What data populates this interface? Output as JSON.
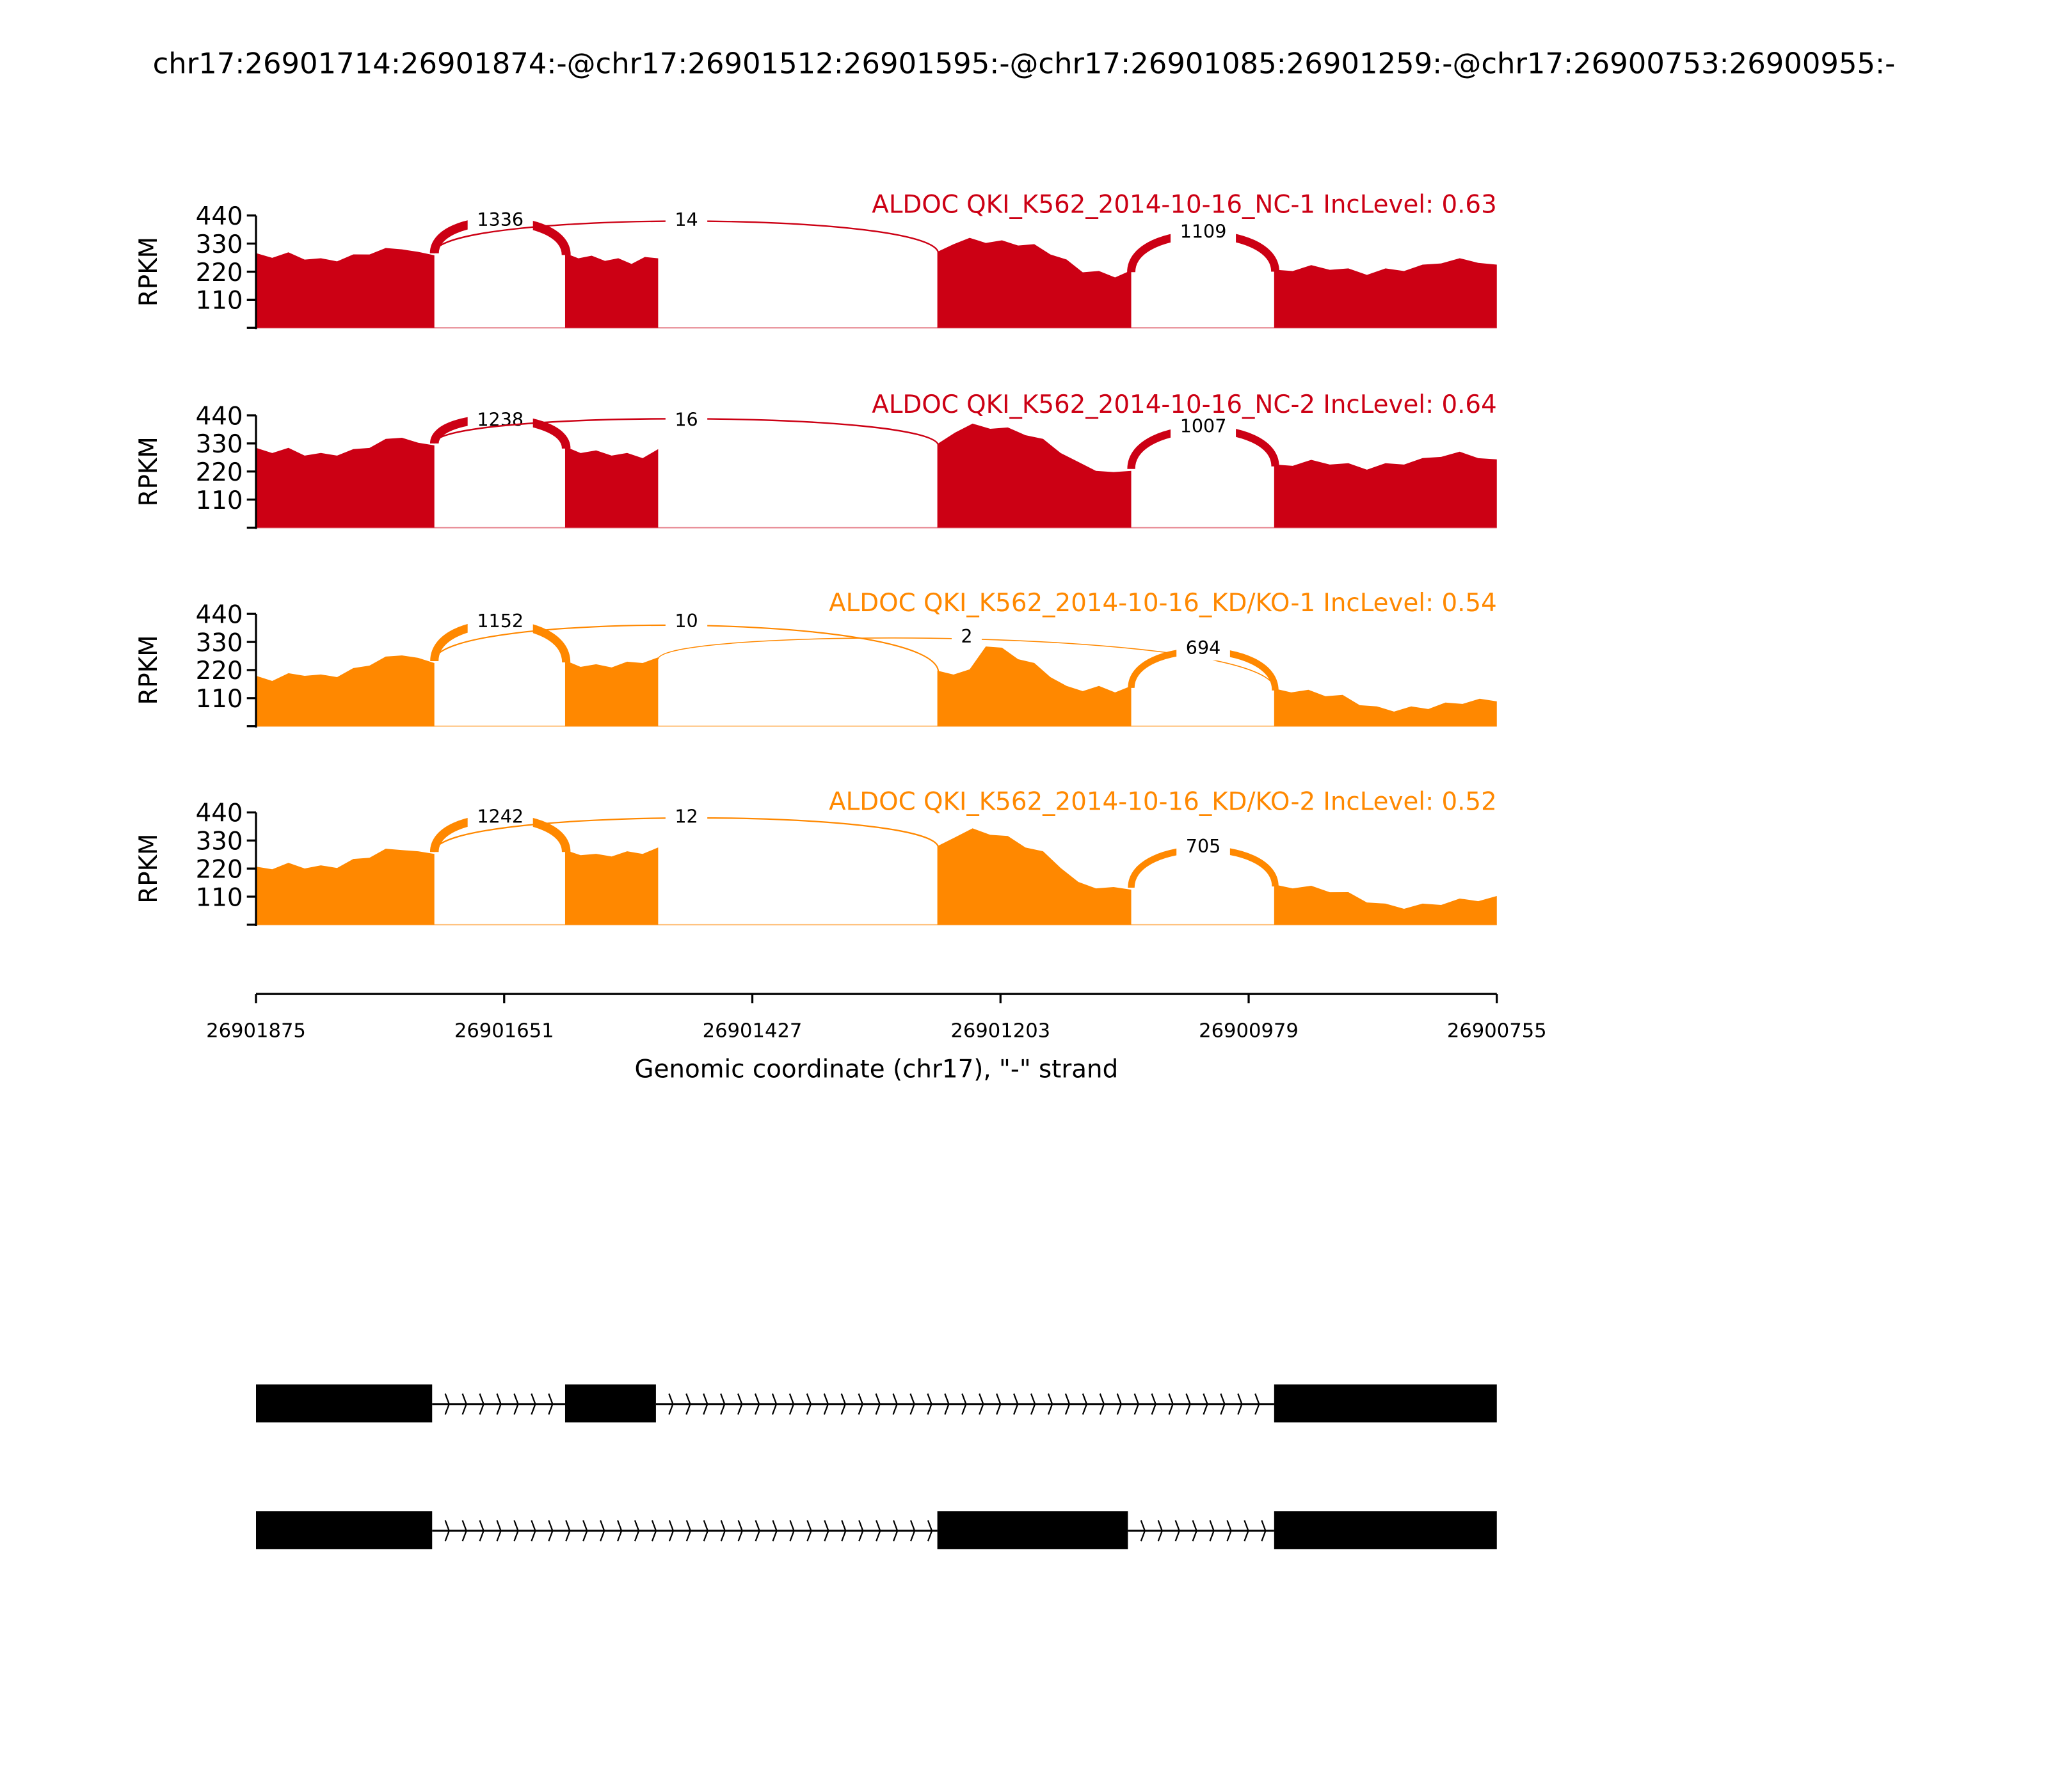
{
  "title": "chr17:26901714:26901874:-@chr17:26901512:26901595:-@chr17:26901085:26901259:-@chr17:26900753:26900955:-",
  "chart_data": {
    "type": "area",
    "title": "chr17:26901714:26901874:-@chr17:26901512:26901595:-@chr17:26901085:26901259:-@chr17:26900753:26900955:-",
    "xlabel": "Genomic coordinate (chr17), \"-\" strand",
    "ylabel": "RPKM",
    "xlim": [
      26901875,
      26900755
    ],
    "ylim": [
      0,
      440
    ],
    "yticks": [
      "440",
      "330",
      "220",
      "110"
    ],
    "xticks": [
      {
        "value": 26901875,
        "label": "26901875"
      },
      {
        "value": 26901651,
        "label": "26901651"
      },
      {
        "value": 26901427,
        "label": "26901427"
      },
      {
        "value": 26901203,
        "label": "26901203"
      },
      {
        "value": 26900979,
        "label": "26900979"
      },
      {
        "value": 26900755,
        "label": "26900755"
      }
    ],
    "exons": [
      [
        26901874,
        26901714
      ],
      [
        26901595,
        26901512
      ],
      [
        26901259,
        26901085
      ],
      [
        26900955,
        26900755
      ]
    ],
    "samples": [
      {
        "label": "ALDOC QKI_K562_2014-10-16_NC-1 IncLevel: 0.63",
        "color": "#cc0014",
        "coverage": [
          [
            285,
            282,
            288,
            275,
            265,
            268,
            280,
            295,
            305,
            315,
            290,
            292
          ],
          [
            285,
            280,
            275,
            270,
            265,
            258,
            270,
            280
          ],
          [
            290,
            335,
            345,
            340,
            335,
            330,
            320,
            295,
            260,
            225,
            215,
            205,
            218
          ],
          [
            220,
            230,
            238,
            235,
            225,
            215,
            225,
            230,
            240,
            260,
            265,
            262,
            240
          ]
        ],
        "junctions": [
          {
            "from": 26901714,
            "to": 26901595,
            "count": "1336"
          },
          {
            "from": 26901714,
            "to": 26901259,
            "count": "14"
          },
          {
            "from": 26901085,
            "to": 26900955,
            "count": "1109"
          }
        ]
      },
      {
        "label": "ALDOC QKI_K562_2014-10-16_NC-2 IncLevel: 0.64",
        "color": "#cc0014",
        "coverage": [
          [
            305,
            300,
            305,
            290,
            285,
            290,
            300,
            320,
            340,
            360,
            325,
            330
          ],
          [
            310,
            300,
            295,
            290,
            285,
            280,
            300
          ],
          [
            320,
            380,
            400,
            395,
            385,
            370,
            340,
            300,
            250,
            230,
            210,
            230
          ],
          [
            240,
            250,
            258,
            255,
            245,
            235,
            245,
            255,
            265,
            285,
            290,
            280,
            260
          ]
        ],
        "junctions": [
          {
            "from": 26901714,
            "to": 26901595,
            "count": "1238"
          },
          {
            "from": 26901714,
            "to": 26901259,
            "count": "16"
          },
          {
            "from": 26901085,
            "to": 26900955,
            "count": "1007"
          }
        ]
      },
      {
        "label": "ALDOC QKI_K562_2014-10-16_KD/KO-1 IncLevel: 0.54",
        "color": "#ff8800",
        "coverage": [
          [
            190,
            185,
            200,
            205,
            195,
            200,
            220,
            245,
            265,
            285,
            260,
            255
          ],
          [
            250,
            240,
            235,
            238,
            245,
            255,
            262
          ],
          [
            210,
            210,
            215,
            320,
            300,
            270,
            240,
            200,
            150,
            145,
            150,
            140,
            150
          ],
          [
            140,
            140,
            135,
            125,
            115,
            90,
            70,
            65,
            70,
            75,
            85,
            95,
            100,
            105
          ]
        ],
        "junctions": [
          {
            "from": 26901714,
            "to": 26901595,
            "count": "1152"
          },
          {
            "from": 26901714,
            "to": 26901259,
            "count": "10"
          },
          {
            "from": 26901512,
            "to": 26900955,
            "count": "2"
          },
          {
            "from": 26901085,
            "to": 26900955,
            "count": "694"
          }
        ]
      },
      {
        "label": "ALDOC QKI_K562_2014-10-16_KD/KO-2 IncLevel: 0.52",
        "color": "#ff8800",
        "coverage": [
          [
            220,
            225,
            235,
            228,
            225,
            230,
            250,
            270,
            290,
            300,
            280,
            285
          ],
          [
            285,
            280,
            270,
            275,
            280,
            285,
            295
          ],
          [
            300,
            350,
            370,
            360,
            340,
            310,
            280,
            230,
            160,
            150,
            140,
            145
          ],
          [
            150,
            150,
            145,
            135,
            120,
            95,
            75,
            70,
            75,
            85,
            95,
            100,
            105
          ]
        ],
        "junctions": [
          {
            "from": 26901714,
            "to": 26901595,
            "count": "1242"
          },
          {
            "from": 26901714,
            "to": 26901259,
            "count": "12"
          },
          {
            "from": 26901085,
            "to": 26900955,
            "count": "705"
          }
        ]
      }
    ],
    "isoforms": [
      {
        "exons": [
          [
            26901874,
            26901716
          ],
          [
            26901595,
            26901514
          ],
          [
            26900955,
            26900755
          ]
        ]
      },
      {
        "exons": [
          [
            26901874,
            26901716
          ],
          [
            26901259,
            26901088
          ],
          [
            26900955,
            26900755
          ]
        ]
      }
    ]
  }
}
